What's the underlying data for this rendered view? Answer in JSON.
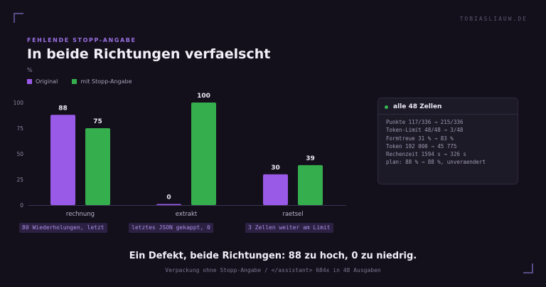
{
  "site_label": "TOBIASLIAUW.DE",
  "eyebrow": "FEHLENDE STOPP-ANGABE",
  "title": "In beide Richtungen verfaelscht",
  "unit": "%",
  "colors": {
    "original": "#9a5ae8",
    "stopp": "#35ae4e",
    "axis": "#3a3550",
    "text": "#ece8f4",
    "muted": "#8c879e"
  },
  "chart_data": {
    "type": "bar",
    "categories": [
      "rechnung",
      "extrakt",
      "raetsel"
    ],
    "series": [
      {
        "name": "Original",
        "values": [
          88,
          0,
          30
        ]
      },
      {
        "name": "mit Stopp-Angabe",
        "values": [
          75,
          100,
          39
        ]
      }
    ],
    "ylim": [
      0,
      100
    ],
    "yticks": [
      0,
      25,
      50,
      75,
      100
    ],
    "ylabel": "%",
    "legend": "top-left",
    "grid": false
  },
  "tags": [
    "80 Wiederholungen, letzt",
    "letztes JSON gekappt, 0",
    "3 Zellen weiter am Limit"
  ],
  "info": {
    "title": "alle 48 Zellen",
    "lines": [
      "Punkte 117/336 → 215/336",
      "Token-Limit 48/48 → 3/48",
      "Formtreue 31 % → 83 %",
      "Token 192 000 → 45 775",
      "Rechenzeit 1594 s → 326 s",
      "plan: 88 % → 88 %, unveraendert"
    ]
  },
  "footer": {
    "title": "Ein Defekt, beide Richtungen: 88 zu hoch, 0 zu niedrig.",
    "subtitle": "Verpackung ohne Stopp-Angabe / </assistant> 684x in 48 Ausgaben"
  }
}
